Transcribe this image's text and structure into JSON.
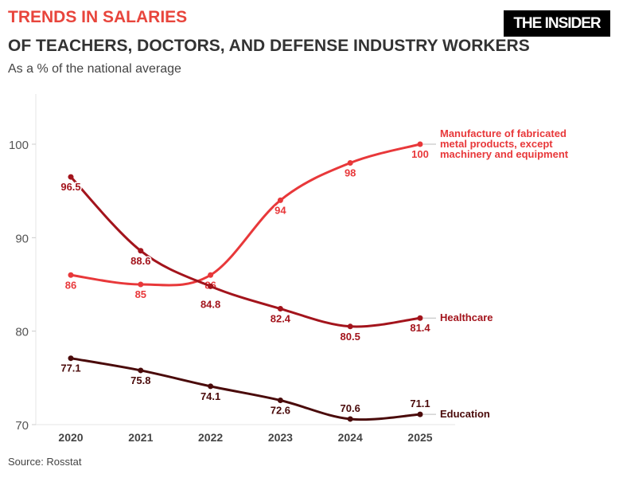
{
  "header": {
    "kicker": "TRENDS IN SALARIES",
    "title": "OF TEACHERS, DOCTORS, AND DEFENSE INDUSTRY WORKERS",
    "subtitle": "As a % of the national average",
    "logo": "THE INSIDER"
  },
  "source": "Source: Rosstat",
  "chart_data": {
    "type": "line",
    "title": "TRENDS IN SALARIES OF TEACHERS, DOCTORS, AND DEFENSE INDUSTRY WORKERS",
    "subtitle": "As a % of the national average",
    "xlabel": "",
    "ylabel": "",
    "x": [
      "2020",
      "2021",
      "2022",
      "2023",
      "2024",
      "2025"
    ],
    "ylim": [
      70,
      100
    ],
    "yticks": [
      70,
      80,
      90,
      100
    ],
    "grid": false,
    "legend": "inline-right",
    "series": [
      {
        "name": "Manufacture of fabricated metal products, except machinery and equipment",
        "name_lines": [
          "Manufacture of fabricated",
          "metal products, except",
          "machinery and equipment"
        ],
        "color": "#e8383a",
        "values": [
          86,
          85,
          86,
          94,
          98,
          100
        ]
      },
      {
        "name": "Healthcare",
        "name_lines": [
          "Healthcare"
        ],
        "color": "#a3141c",
        "values": [
          96.5,
          88.6,
          84.8,
          82.4,
          80.5,
          81.4
        ]
      },
      {
        "name": "Education",
        "name_lines": [
          "Education"
        ],
        "color": "#4a0a0a",
        "values": [
          77.1,
          75.8,
          74.1,
          72.6,
          70.6,
          71.1
        ]
      }
    ]
  }
}
